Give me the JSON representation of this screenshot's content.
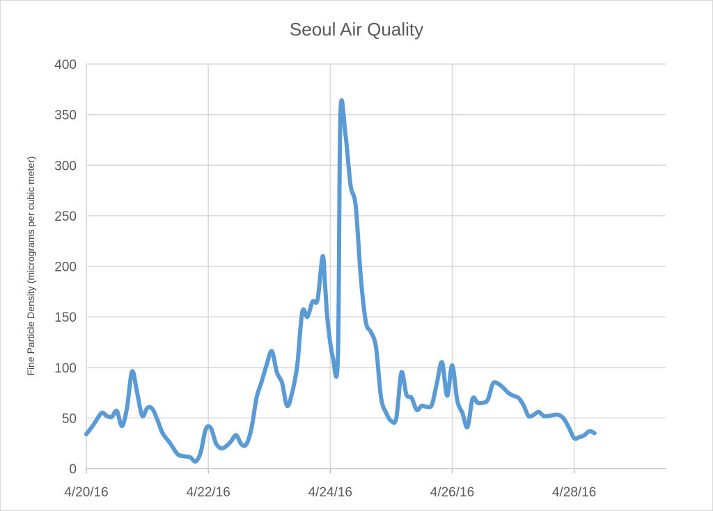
{
  "chart_data": {
    "type": "line",
    "title": "Seoul Air Quality",
    "xlabel": "",
    "ylabel": "Fine Particle Density (micrograms per cubic meter)",
    "ylim": [
      0,
      400
    ],
    "yticks": [
      0,
      50,
      100,
      150,
      200,
      250,
      300,
      350,
      400
    ],
    "xlim": [
      "2016-04-20",
      "2016-04-29 12:00"
    ],
    "xticks": [
      "2016-04-20",
      "2016-04-22",
      "2016-04-24",
      "2016-04-26",
      "2016-04-28"
    ],
    "xtick_labels": [
      "4/20/16",
      "4/22/16",
      "4/24/16",
      "4/26/16",
      "4/28/16"
    ],
    "grid": true,
    "legend": "none",
    "series": [
      {
        "color": "#5b9bd5",
        "x": [
          "2016-04-20 00:00",
          "2016-04-20 03:00",
          "2016-04-20 06:00",
          "2016-04-20 08:00",
          "2016-04-20 10:00",
          "2016-04-20 12:00",
          "2016-04-20 14:00",
          "2016-04-20 16:00",
          "2016-04-20 18:00",
          "2016-04-20 20:00",
          "2016-04-20 22:00",
          "2016-04-21 00:00",
          "2016-04-21 02:00",
          "2016-04-21 04:00",
          "2016-04-21 06:00",
          "2016-04-21 09:00",
          "2016-04-21 12:00",
          "2016-04-21 15:00",
          "2016-04-21 17:00",
          "2016-04-21 19:00",
          "2016-04-21 21:00",
          "2016-04-21 23:00",
          "2016-04-22 01:00",
          "2016-04-22 03:00",
          "2016-04-22 05:00",
          "2016-04-22 07:00",
          "2016-04-22 09:00",
          "2016-04-22 11:00",
          "2016-04-22 13:00",
          "2016-04-22 15:00",
          "2016-04-22 17:00",
          "2016-04-22 19:00",
          "2016-04-22 21:00",
          "2016-04-22 23:00",
          "2016-04-23 01:00",
          "2016-04-23 03:00",
          "2016-04-23 05:00",
          "2016-04-23 07:00",
          "2016-04-23 09:00",
          "2016-04-23 11:00",
          "2016-04-23 13:00",
          "2016-04-23 15:00",
          "2016-04-23 17:00",
          "2016-04-23 19:00",
          "2016-04-23 21:00",
          "2016-04-23 22:00",
          "2016-04-23 23:00",
          "2016-04-24 01:00",
          "2016-04-24 03:00",
          "2016-04-24 04:00",
          "2016-04-24 06:00",
          "2016-04-24 08:00",
          "2016-04-24 10:00",
          "2016-04-24 12:00",
          "2016-04-24 14:00",
          "2016-04-24 16:00",
          "2016-04-24 18:00",
          "2016-04-24 20:00",
          "2016-04-24 22:00",
          "2016-04-25 00:00",
          "2016-04-25 02:00",
          "2016-04-25 04:00",
          "2016-04-25 06:00",
          "2016-04-25 08:00",
          "2016-04-25 10:00",
          "2016-04-25 12:00",
          "2016-04-25 14:00",
          "2016-04-25 16:00",
          "2016-04-25 18:00",
          "2016-04-25 20:00",
          "2016-04-25 22:00",
          "2016-04-26 00:00",
          "2016-04-26 02:00",
          "2016-04-26 04:00",
          "2016-04-26 06:00",
          "2016-04-26 08:00",
          "2016-04-26 10:00",
          "2016-04-26 12:00",
          "2016-04-26 14:00",
          "2016-04-26 16:00",
          "2016-04-26 18:00",
          "2016-04-26 20:00",
          "2016-04-26 22:00",
          "2016-04-27 00:00",
          "2016-04-27 02:00",
          "2016-04-27 04:00",
          "2016-04-27 06:00",
          "2016-04-27 08:00",
          "2016-04-27 10:00",
          "2016-04-27 12:00",
          "2016-04-27 14:00",
          "2016-04-27 16:00",
          "2016-04-27 18:00",
          "2016-04-27 20:00",
          "2016-04-27 22:00",
          "2016-04-28 00:00",
          "2016-04-28 02:00",
          "2016-04-28 04:00",
          "2016-04-28 06:00",
          "2016-04-28 08:00"
        ],
        "y": [
          34,
          44,
          55,
          52,
          51,
          57,
          42,
          60,
          96,
          75,
          52,
          60,
          59,
          48,
          35,
          25,
          14,
          12,
          11,
          7,
          16,
          39,
          40,
          25,
          20,
          22,
          27,
          33,
          24,
          24,
          40,
          70,
          86,
          103,
          116,
          95,
          85,
          62,
          75,
          102,
          155,
          150,
          165,
          167,
          210,
          180,
          145,
          110,
          110,
          350,
          330,
          280,
          260,
          190,
          145,
          135,
          120,
          70,
          55,
          47,
          50,
          95,
          73,
          70,
          58,
          62,
          61,
          63,
          85,
          105,
          72,
          102,
          67,
          55,
          41,
          69,
          65,
          65,
          68,
          84,
          84,
          80,
          75,
          72,
          70,
          63,
          52,
          53,
          56,
          52,
          52,
          53,
          53,
          49,
          40,
          30,
          31,
          33,
          37,
          35
        ]
      }
    ]
  }
}
